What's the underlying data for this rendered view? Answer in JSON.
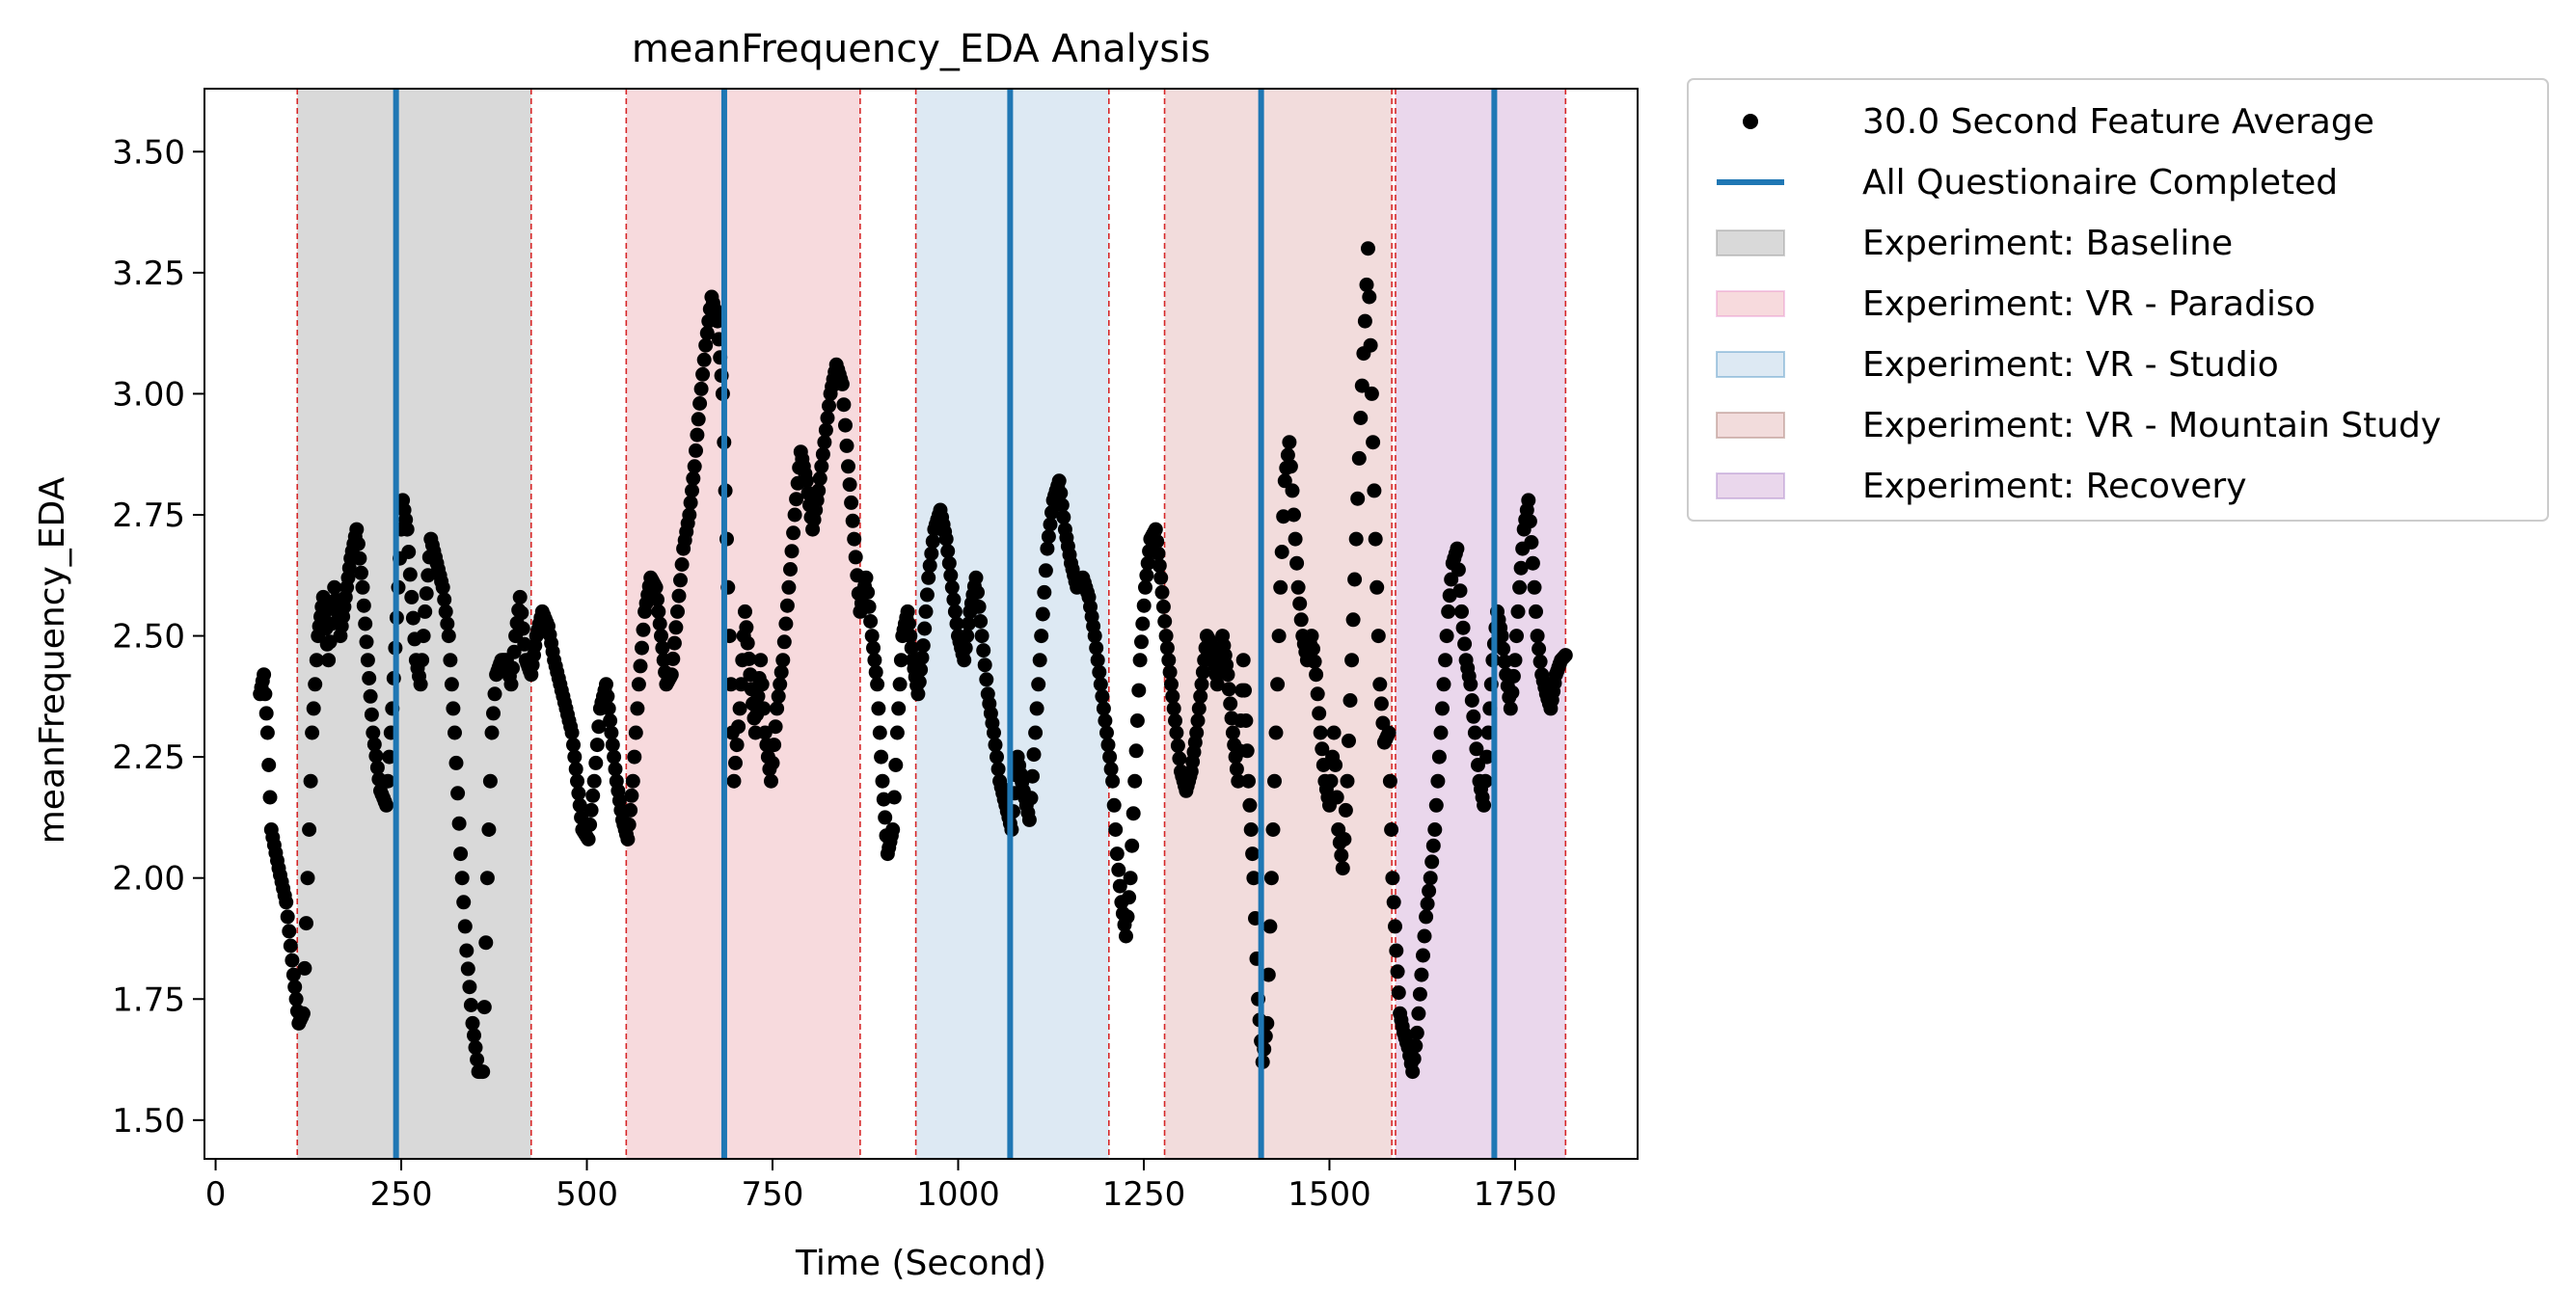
{
  "chart_data": {
    "type": "scatter",
    "title": "meanFrequency_EDA Analysis",
    "xlabel": "Time (Second)",
    "ylabel": "meanFrequency_EDA",
    "xlim": [
      -15,
      1915
    ],
    "ylim": [
      1.42,
      3.63
    ],
    "xticks": [
      0,
      250,
      500,
      750,
      1000,
      1250,
      1500,
      1750
    ],
    "yticks": [
      1.5,
      1.75,
      2.0,
      2.25,
      2.5,
      2.75,
      3.0,
      3.25,
      3.5
    ],
    "ytick_labels": [
      "1.50",
      "1.75",
      "2.00",
      "2.25",
      "2.50",
      "2.75",
      "3.00",
      "3.25",
      "3.50"
    ],
    "grid": false,
    "legend_position": "outside-top-right",
    "legend": [
      {
        "label": "30.0 Second Feature Average",
        "kind": "marker",
        "color": "#000000"
      },
      {
        "label": "All Questionaire Completed",
        "kind": "line",
        "color": "#1f77b4"
      },
      {
        "label": "Experiment: Baseline",
        "kind": "patch",
        "color": "#7f7f7f"
      },
      {
        "label": "Experiment: VR - Paradiso",
        "kind": "patch",
        "color": "#e377c2"
      },
      {
        "label": "Experiment: VR - Studio",
        "kind": "patch",
        "color": "#1f77b4"
      },
      {
        "label": "Experiment: VR - Mountain Study",
        "kind": "patch",
        "color": "#8c564b"
      },
      {
        "label": "Experiment: Recovery",
        "kind": "patch",
        "color": "#9467bd"
      }
    ],
    "phases": [
      {
        "label": "Experiment: Baseline",
        "start": 110,
        "end": 425,
        "fill": "#d9d9d9"
      },
      {
        "label": "Experiment: VR - Paradiso",
        "start": 553,
        "end": 868,
        "fill": "#f7dadd"
      },
      {
        "label": "Experiment: VR - Studio",
        "start": 943,
        "end": 1203,
        "fill": "#dde9f3"
      },
      {
        "label": "Experiment: VR - Mountain Study",
        "start": 1278,
        "end": 1584,
        "fill": "#f2dcdc"
      },
      {
        "label": "Experiment: Recovery",
        "start": 1589,
        "end": 1818,
        "fill": "#ead7ec"
      }
    ],
    "phase_boundaries": [
      110,
      425,
      553,
      868,
      943,
      1203,
      1278,
      1584,
      1589,
      1818
    ],
    "questionnaire_completed": [
      243,
      685,
      1070,
      1408,
      1722
    ],
    "series": [
      {
        "name": "30.0 Second Feature Average",
        "keyframes": [
          [
            60,
            2.38
          ],
          [
            65,
            2.42
          ],
          [
            70,
            2.3
          ],
          [
            75,
            2.1
          ],
          [
            85,
            2.02
          ],
          [
            95,
            1.95
          ],
          [
            105,
            1.8
          ],
          [
            112,
            1.7
          ],
          [
            118,
            1.72
          ],
          [
            124,
            2.0
          ],
          [
            130,
            2.3
          ],
          [
            138,
            2.5
          ],
          [
            145,
            2.58
          ],
          [
            152,
            2.45
          ],
          [
            160,
            2.6
          ],
          [
            168,
            2.5
          ],
          [
            175,
            2.58
          ],
          [
            182,
            2.66
          ],
          [
            190,
            2.72
          ],
          [
            198,
            2.6
          ],
          [
            205,
            2.45
          ],
          [
            212,
            2.3
          ],
          [
            222,
            2.18
          ],
          [
            230,
            2.15
          ],
          [
            238,
            2.35
          ],
          [
            246,
            2.6
          ],
          [
            252,
            2.78
          ],
          [
            258,
            2.72
          ],
          [
            264,
            2.58
          ],
          [
            270,
            2.45
          ],
          [
            276,
            2.4
          ],
          [
            282,
            2.55
          ],
          [
            290,
            2.7
          ],
          [
            298,
            2.65
          ],
          [
            306,
            2.6
          ],
          [
            314,
            2.5
          ],
          [
            322,
            2.3
          ],
          [
            330,
            2.05
          ],
          [
            338,
            1.85
          ],
          [
            346,
            1.7
          ],
          [
            354,
            1.6
          ],
          [
            360,
            1.6
          ],
          [
            366,
            2.0
          ],
          [
            372,
            2.3
          ],
          [
            378,
            2.42
          ],
          [
            385,
            2.45
          ],
          [
            392,
            2.45
          ],
          [
            398,
            2.4
          ],
          [
            404,
            2.5
          ],
          [
            410,
            2.58
          ],
          [
            418,
            2.45
          ],
          [
            425,
            2.42
          ],
          [
            432,
            2.5
          ],
          [
            440,
            2.55
          ],
          [
            448,
            2.52
          ],
          [
            456,
            2.45
          ],
          [
            464,
            2.4
          ],
          [
            472,
            2.35
          ],
          [
            480,
            2.3
          ],
          [
            487,
            2.2
          ],
          [
            494,
            2.1
          ],
          [
            502,
            2.08
          ],
          [
            510,
            2.2
          ],
          [
            518,
            2.35
          ],
          [
            526,
            2.4
          ],
          [
            533,
            2.3
          ],
          [
            540,
            2.2
          ],
          [
            548,
            2.12
          ],
          [
            555,
            2.08
          ],
          [
            562,
            2.2
          ],
          [
            570,
            2.4
          ],
          [
            578,
            2.55
          ],
          [
            586,
            2.62
          ],
          [
            593,
            2.6
          ],
          [
            600,
            2.5
          ],
          [
            607,
            2.4
          ],
          [
            614,
            2.42
          ],
          [
            622,
            2.55
          ],
          [
            630,
            2.68
          ],
          [
            638,
            2.75
          ],
          [
            645,
            2.85
          ],
          [
            652,
            2.98
          ],
          [
            660,
            3.1
          ],
          [
            668,
            3.2
          ],
          [
            676,
            3.15
          ],
          [
            683,
            3.0
          ],
          [
            690,
            2.6
          ],
          [
            698,
            2.2
          ],
          [
            706,
            2.35
          ],
          [
            713,
            2.55
          ],
          [
            720,
            2.42
          ],
          [
            727,
            2.3
          ],
          [
            734,
            2.45
          ],
          [
            740,
            2.3
          ],
          [
            748,
            2.2
          ],
          [
            756,
            2.35
          ],
          [
            764,
            2.45
          ],
          [
            772,
            2.6
          ],
          [
            780,
            2.75
          ],
          [
            788,
            2.88
          ],
          [
            796,
            2.82
          ],
          [
            804,
            2.72
          ],
          [
            812,
            2.8
          ],
          [
            820,
            2.9
          ],
          [
            828,
            3.0
          ],
          [
            836,
            3.06
          ],
          [
            844,
            3.02
          ],
          [
            852,
            2.85
          ],
          [
            860,
            2.7
          ],
          [
            868,
            2.55
          ],
          [
            876,
            2.62
          ],
          [
            884,
            2.5
          ],
          [
            891,
            2.4
          ],
          [
            898,
            2.2
          ],
          [
            905,
            2.05
          ],
          [
            912,
            2.1
          ],
          [
            918,
            2.3
          ],
          [
            925,
            2.5
          ],
          [
            932,
            2.55
          ],
          [
            939,
            2.45
          ],
          [
            946,
            2.38
          ],
          [
            953,
            2.48
          ],
          [
            960,
            2.62
          ],
          [
            968,
            2.72
          ],
          [
            976,
            2.76
          ],
          [
            984,
            2.7
          ],
          [
            992,
            2.6
          ],
          [
            1000,
            2.5
          ],
          [
            1008,
            2.45
          ],
          [
            1016,
            2.55
          ],
          [
            1024,
            2.62
          ],
          [
            1032,
            2.5
          ],
          [
            1040,
            2.38
          ],
          [
            1048,
            2.3
          ],
          [
            1056,
            2.2
          ],
          [
            1064,
            2.15
          ],
          [
            1072,
            2.1
          ],
          [
            1080,
            2.25
          ],
          [
            1088,
            2.18
          ],
          [
            1096,
            2.12
          ],
          [
            1104,
            2.3
          ],
          [
            1112,
            2.5
          ],
          [
            1120,
            2.68
          ],
          [
            1128,
            2.78
          ],
          [
            1136,
            2.82
          ],
          [
            1144,
            2.72
          ],
          [
            1152,
            2.65
          ],
          [
            1160,
            2.6
          ],
          [
            1168,
            2.62
          ],
          [
            1176,
            2.58
          ],
          [
            1184,
            2.5
          ],
          [
            1192,
            2.4
          ],
          [
            1200,
            2.3
          ],
          [
            1208,
            2.2
          ],
          [
            1214,
            2.05
          ],
          [
            1220,
            1.95
          ],
          [
            1226,
            1.88
          ],
          [
            1232,
            2.0
          ],
          [
            1238,
            2.2
          ],
          [
            1245,
            2.45
          ],
          [
            1252,
            2.6
          ],
          [
            1259,
            2.7
          ],
          [
            1266,
            2.72
          ],
          [
            1273,
            2.62
          ],
          [
            1280,
            2.5
          ],
          [
            1287,
            2.4
          ],
          [
            1294,
            2.3
          ],
          [
            1300,
            2.22
          ],
          [
            1307,
            2.18
          ],
          [
            1314,
            2.22
          ],
          [
            1321,
            2.3
          ],
          [
            1328,
            2.4
          ],
          [
            1335,
            2.5
          ],
          [
            1342,
            2.48
          ],
          [
            1349,
            2.4
          ],
          [
            1356,
            2.5
          ],
          [
            1363,
            2.42
          ],
          [
            1370,
            2.3
          ],
          [
            1377,
            2.2
          ],
          [
            1384,
            2.45
          ],
          [
            1391,
            2.2
          ],
          [
            1398,
            2.0
          ],
          [
            1404,
            1.75
          ],
          [
            1410,
            1.62
          ],
          [
            1416,
            1.7
          ],
          [
            1422,
            2.0
          ],
          [
            1428,
            2.3
          ],
          [
            1434,
            2.6
          ],
          [
            1440,
            2.82
          ],
          [
            1446,
            2.9
          ],
          [
            1452,
            2.75
          ],
          [
            1458,
            2.6
          ],
          [
            1464,
            2.5
          ],
          [
            1470,
            2.45
          ],
          [
            1476,
            2.5
          ],
          [
            1482,
            2.42
          ],
          [
            1488,
            2.3
          ],
          [
            1494,
            2.2
          ],
          [
            1500,
            2.15
          ],
          [
            1506,
            2.3
          ],
          [
            1512,
            2.1
          ],
          [
            1518,
            2.02
          ],
          [
            1524,
            2.2
          ],
          [
            1530,
            2.45
          ],
          [
            1536,
            2.7
          ],
          [
            1542,
            2.95
          ],
          [
            1548,
            3.15
          ],
          [
            1552,
            3.3
          ],
          [
            1557,
            3.0
          ],
          [
            1562,
            2.7
          ],
          [
            1568,
            2.4
          ],
          [
            1574,
            2.28
          ],
          [
            1580,
            2.3
          ],
          [
            1585,
            2.0
          ],
          [
            1590,
            1.85
          ],
          [
            1595,
            1.72
          ],
          [
            1600,
            1.68
          ],
          [
            1606,
            1.65
          ],
          [
            1612,
            1.6
          ],
          [
            1618,
            1.68
          ],
          [
            1624,
            1.8
          ],
          [
            1630,
            1.92
          ],
          [
            1636,
            2.0
          ],
          [
            1642,
            2.1
          ],
          [
            1648,
            2.25
          ],
          [
            1654,
            2.4
          ],
          [
            1660,
            2.55
          ],
          [
            1666,
            2.65
          ],
          [
            1672,
            2.68
          ],
          [
            1678,
            2.55
          ],
          [
            1684,
            2.45
          ],
          [
            1690,
            2.4
          ],
          [
            1696,
            2.3
          ],
          [
            1702,
            2.2
          ],
          [
            1708,
            2.15
          ],
          [
            1714,
            2.3
          ],
          [
            1720,
            2.45
          ],
          [
            1726,
            2.55
          ],
          [
            1732,
            2.5
          ],
          [
            1738,
            2.42
          ],
          [
            1744,
            2.35
          ],
          [
            1750,
            2.45
          ],
          [
            1756,
            2.6
          ],
          [
            1762,
            2.72
          ],
          [
            1768,
            2.78
          ],
          [
            1774,
            2.65
          ],
          [
            1780,
            2.5
          ],
          [
            1786,
            2.42
          ],
          [
            1792,
            2.38
          ],
          [
            1798,
            2.35
          ],
          [
            1805,
            2.42
          ],
          [
            1812,
            2.45
          ],
          [
            1818,
            2.46
          ]
        ]
      }
    ]
  }
}
